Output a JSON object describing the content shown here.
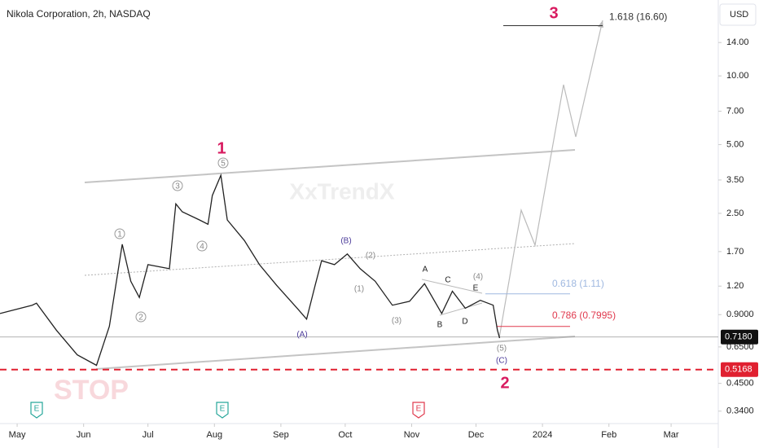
{
  "chart_data": {
    "type": "line",
    "title": "Nikola Corporation, 2h, NASDAQ",
    "currency": "USD",
    "watermark": "XxTrendX",
    "color": "#222222",
    "log_scale": true,
    "x": [
      113,
      128,
      130,
      139.3,
      149,
      158,
      164,
      170,
      174,
      178,
      182,
      192,
      195,
      198,
      206,
      210,
      212,
      216,
      219,
      227,
      234,
      242,
      252,
      256,
      260,
      263,
      269,
      275,
      281,
      288,
      296,
      304,
      311,
      319,
      324,
      330,
      337,
      343,
      345,
      346
    ],
    "values": [
      0.91,
      0.99,
      1.01,
      0.77,
      0.6,
      0.54,
      0.8,
      1.83,
      1.26,
      1.07,
      1.49,
      1.43,
      2.75,
      2.54,
      2.34,
      2.24,
      2.99,
      3.67,
      2.34,
      1.9,
      1.49,
      1.21,
      0.95,
      0.86,
      1.21,
      1.55,
      1.49,
      1.66,
      1.43,
      1.26,
      0.99,
      1.03,
      1.23,
      0.91,
      1.14,
      0.96,
      1.04,
      0.99,
      0.77,
      0.71
    ],
    "xlim": [
      113,
      448
    ],
    "xticks": [
      {
        "value": 121,
        "label": "May"
      },
      {
        "value": 152,
        "label": "Jun"
      },
      {
        "value": 182,
        "label": "Jul"
      },
      {
        "value": 213,
        "label": "Aug"
      },
      {
        "value": 244,
        "label": "Sep"
      },
      {
        "value": 274,
        "label": "Oct"
      },
      {
        "value": 305,
        "label": "Nov"
      },
      {
        "value": 335,
        "label": "Dec"
      },
      {
        "value": 366,
        "label": "2024"
      },
      {
        "value": 397,
        "label": "Feb"
      },
      {
        "value": 426,
        "label": "Mar"
      }
    ],
    "ylim": [
      0.3,
      21.5
    ],
    "yticks": [
      {
        "value": 14,
        "label": "14.00"
      },
      {
        "value": 10,
        "label": "10.00"
      },
      {
        "value": 7,
        "label": "7.00"
      },
      {
        "value": 5,
        "label": "5.00"
      },
      {
        "value": 3.5,
        "label": "3.50"
      },
      {
        "value": 2.5,
        "label": "2.50"
      },
      {
        "value": 1.7,
        "label": "1.70"
      },
      {
        "value": 1.2,
        "label": "1.20"
      },
      {
        "value": 0.9,
        "label": "0.9000"
      },
      {
        "value": 0.65,
        "label": "0.6500"
      },
      {
        "value": 0.45,
        "label": "0.4500"
      },
      {
        "value": 0.34,
        "label": "0.3400"
      }
    ],
    "levels": [
      {
        "value": 16.6,
        "label": "1.618 (16.60)",
        "color": "#333333"
      },
      {
        "value": 1.11,
        "label": "0.618 (1.11)",
        "color": "#9fb8e0"
      },
      {
        "value": 0.7995,
        "label": "0.786 (0.7995)",
        "color": "#e03a4e"
      }
    ],
    "price_tags": [
      {
        "value": 0.718,
        "label": "0.7180",
        "color": "#111111"
      },
      {
        "value": 0.5168,
        "label": "0.5168",
        "color": "#e02030"
      }
    ],
    "annotations": [
      "1",
      "3",
      "2",
      "STOP",
      "1",
      "2",
      "3",
      "4",
      "5",
      "(A)",
      "(B)",
      "(C)",
      "(1)",
      "(2)",
      "(3)",
      "(4)",
      "(5)",
      "A",
      "B",
      "C",
      "D",
      "E"
    ],
    "events": [
      "E",
      "E",
      "E"
    ]
  }
}
